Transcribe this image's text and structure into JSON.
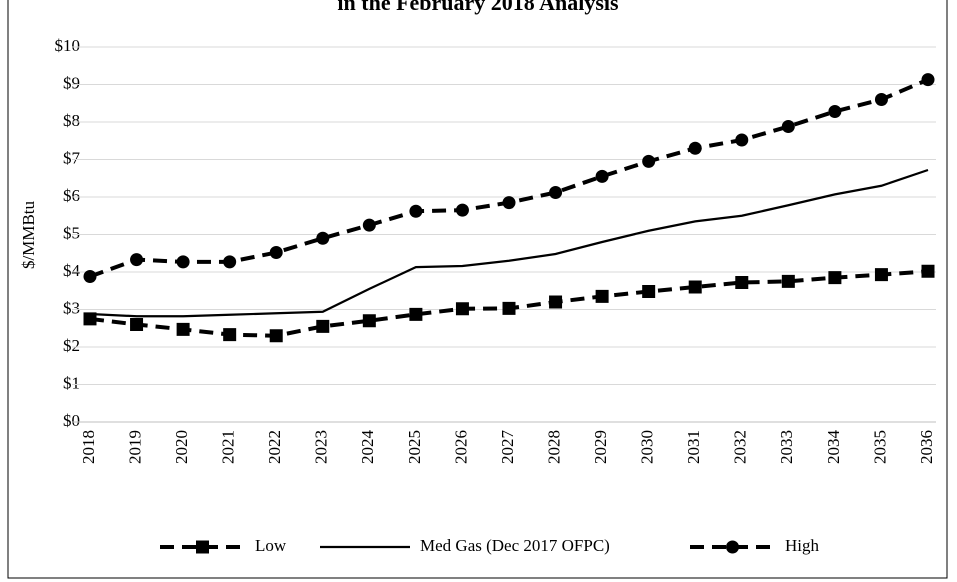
{
  "chart_data": {
    "type": "line",
    "title": "in the February 2018 Analysis",
    "y_label": "$/MMBtu",
    "categories": [
      "2018",
      "2019",
      "2020",
      "2021",
      "2022",
      "2023",
      "2024",
      "2025",
      "2026",
      "2027",
      "2028",
      "2029",
      "2030",
      "2031",
      "2032",
      "2033",
      "2034",
      "2035",
      "2036"
    ],
    "series": [
      {
        "name": "Low",
        "color": "#000000",
        "dashed": true,
        "marker": "square",
        "values": [
          2.75,
          2.6,
          2.47,
          2.33,
          2.3,
          2.55,
          2.7,
          2.87,
          3.02,
          3.03,
          3.2,
          3.35,
          3.48,
          3.6,
          3.72,
          3.75,
          3.85,
          3.93,
          4.02
        ]
      },
      {
        "name": "Med Gas (Dec 2017 OFPC)",
        "color": "#000000",
        "dashed": false,
        "marker": null,
        "values": [
          2.88,
          2.82,
          2.82,
          2.86,
          2.9,
          2.94,
          3.55,
          4.13,
          4.16,
          4.3,
          4.48,
          4.8,
          5.1,
          5.35,
          5.5,
          5.78,
          6.07,
          6.3,
          6.72
        ]
      },
      {
        "name": "High",
        "color": "#000000",
        "dashed": true,
        "marker": "circle",
        "values": [
          3.88,
          4.33,
          4.27,
          4.27,
          4.52,
          4.9,
          5.25,
          5.62,
          5.65,
          5.85,
          6.12,
          6.55,
          6.95,
          7.3,
          7.52,
          7.88,
          8.28,
          8.6,
          9.13
        ]
      }
    ],
    "ylim": [
      0,
      10
    ],
    "yticks": [
      {
        "value": 0,
        "label": "$0"
      },
      {
        "value": 1,
        "label": "$1"
      },
      {
        "value": 2,
        "label": "$2"
      },
      {
        "value": 3,
        "label": "$3"
      },
      {
        "value": 4,
        "label": "$4"
      },
      {
        "value": 5,
        "label": "$5"
      },
      {
        "value": 6,
        "label": "$6"
      },
      {
        "value": 7,
        "label": "$7"
      },
      {
        "value": 8,
        "label": "$8"
      },
      {
        "value": 9,
        "label": "$9"
      },
      {
        "value": 10,
        "label": "$10"
      }
    ],
    "grid": true,
    "legend": "bottom"
  }
}
